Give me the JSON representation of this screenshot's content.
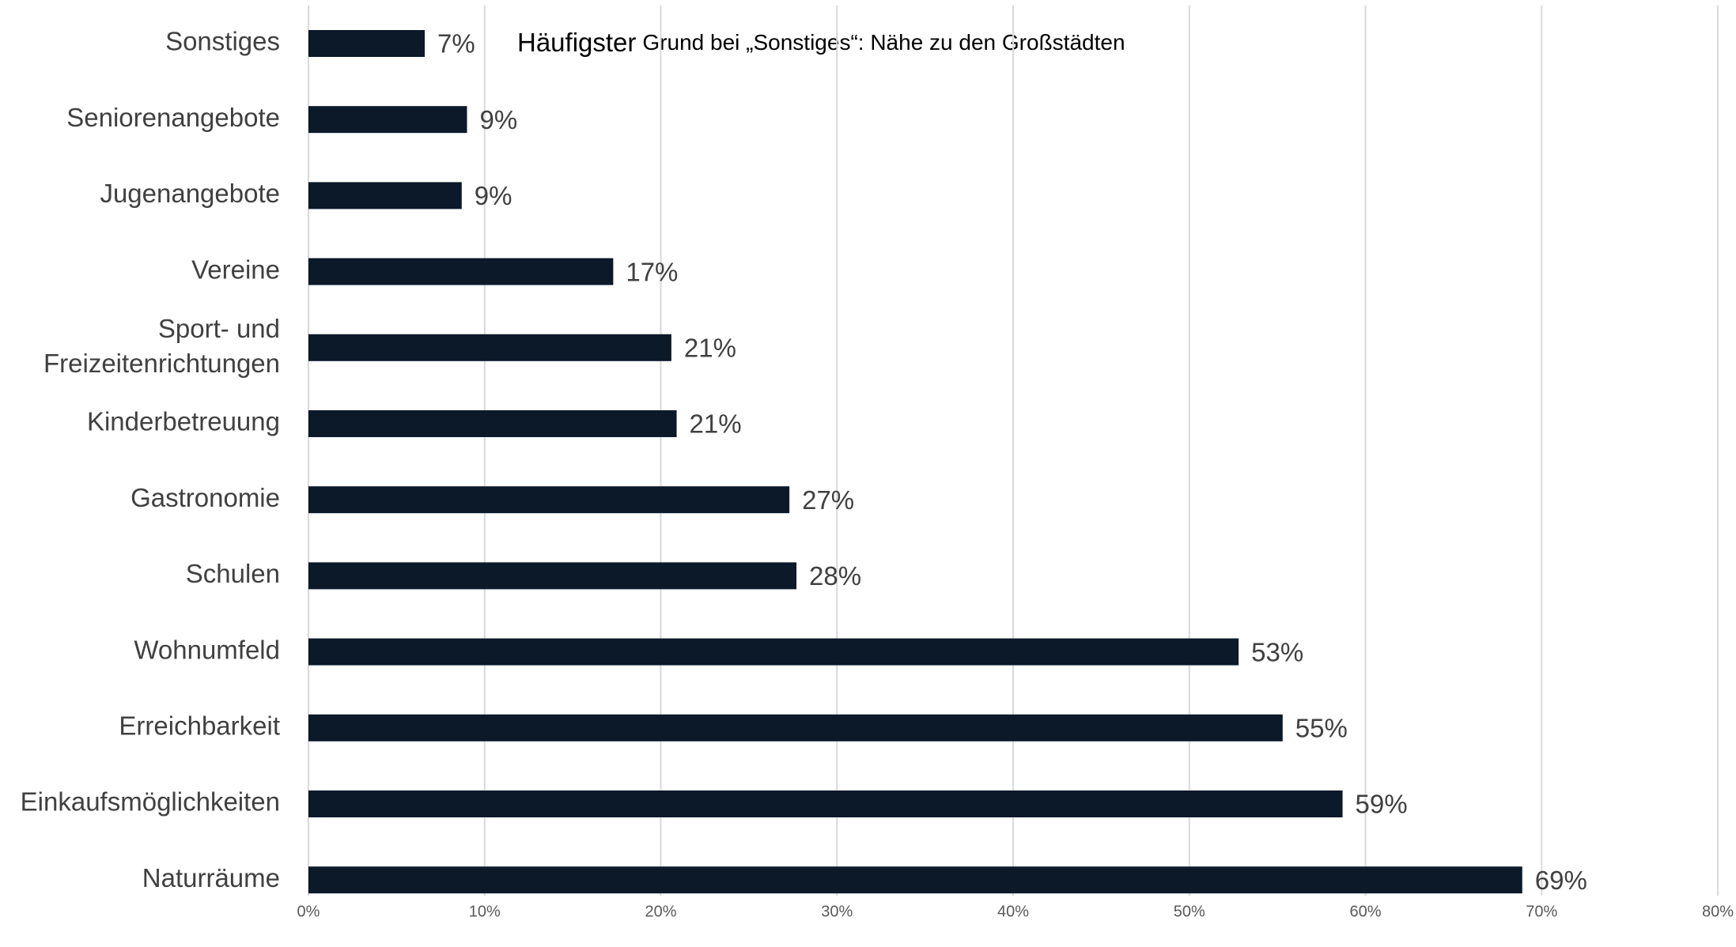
{
  "chart_data": {
    "type": "barh",
    "annotation": [
      "Häufigster",
      "Grund bei „Sonstiges“: Nähe zu den Großstädten"
    ],
    "categories": [
      "Sonstiges",
      "Seniorenangebote",
      "Jugenangebote",
      "Vereine",
      "Sport- und\nFreizeitenrichtungen",
      "Kinderbetreuung",
      "Gastronomie",
      "Schulen",
      "Wohnumfeld",
      "Erreichbarkeit",
      "Einkaufsmöglichkeiten",
      "Naturräume"
    ],
    "values": [
      6.6,
      9.0,
      8.7,
      17.3,
      20.6,
      20.9,
      27.3,
      27.7,
      52.8,
      55.3,
      58.7,
      68.9
    ],
    "value_labels": [
      "7%",
      "9%",
      "9%",
      "17%",
      "21%",
      "21%",
      "27%",
      "28%",
      "53%",
      "55%",
      "59%",
      "69%"
    ],
    "color": "#0b1929",
    "xlim": [
      0,
      80
    ],
    "xticks": [
      {
        "value": 0,
        "label": "0%"
      },
      {
        "value": 10,
        "label": "10%"
      },
      {
        "value": 20,
        "label": "20%"
      },
      {
        "value": 30,
        "label": "30%"
      },
      {
        "value": 40,
        "label": "40%"
      },
      {
        "value": 50,
        "label": "50%"
      },
      {
        "value": 60,
        "label": "60%"
      },
      {
        "value": 70,
        "label": "70%"
      },
      {
        "value": 80,
        "label": "80%"
      }
    ],
    "grid": true
  }
}
